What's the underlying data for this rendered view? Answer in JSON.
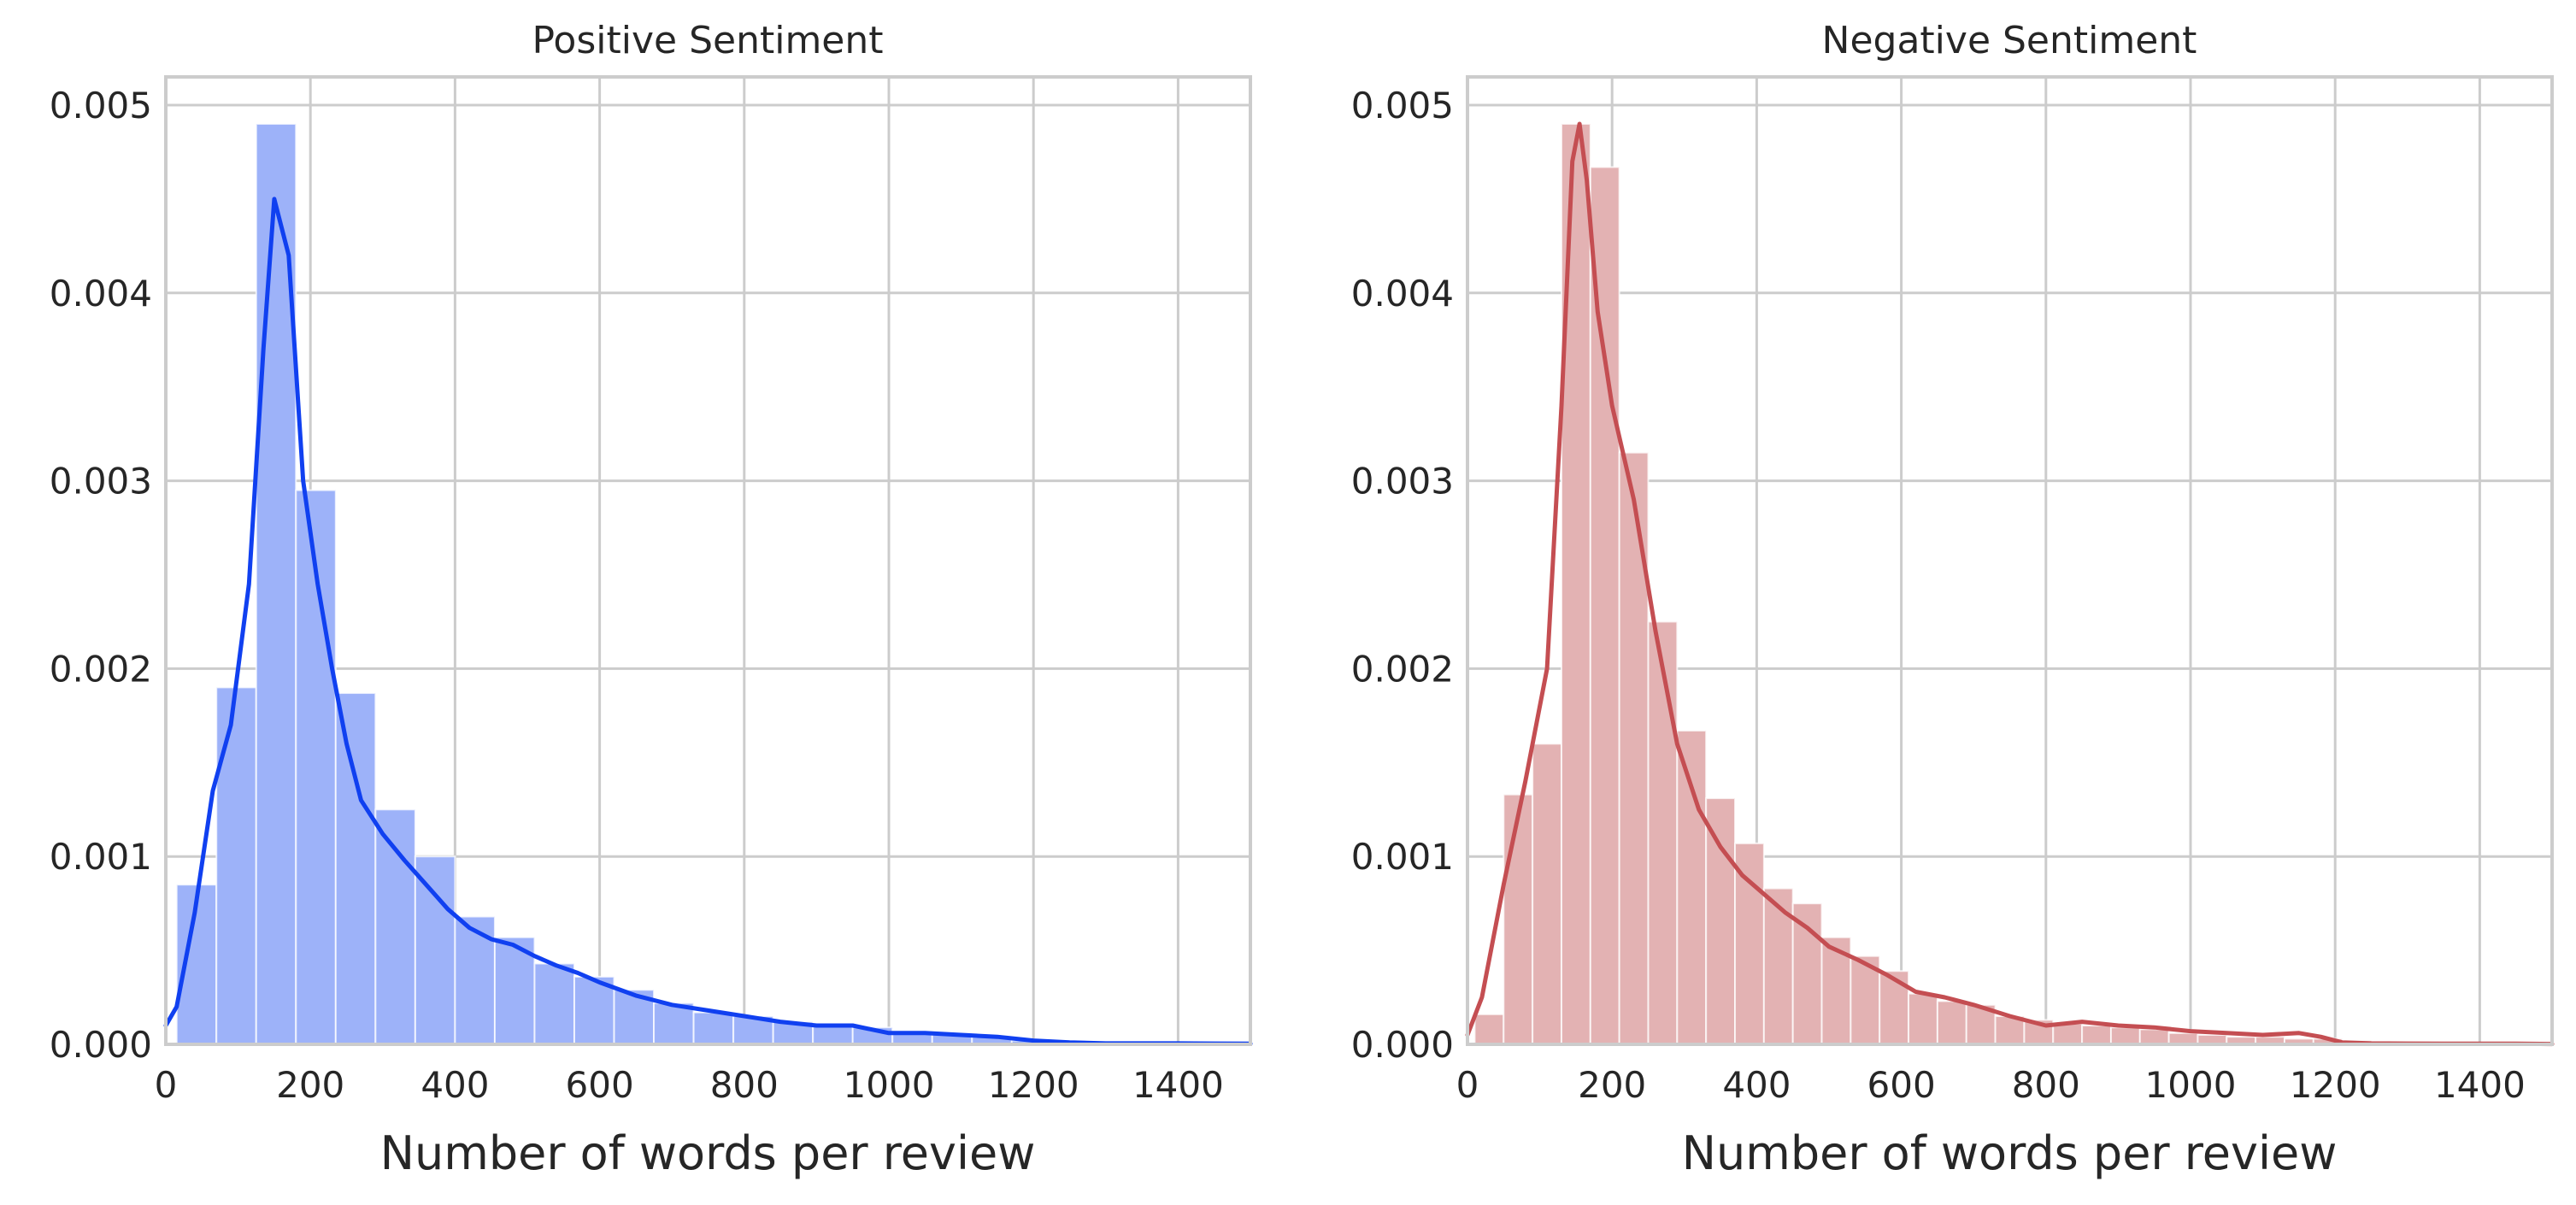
{
  "chart_data": [
    {
      "type": "histogram",
      "title": "Positive Sentiment",
      "xlabel": "Number of words per review",
      "ylabel": "",
      "xlim": [
        0,
        1500
      ],
      "ylim": [
        0,
        0.00515
      ],
      "xticks": [
        "0",
        "200",
        "400",
        "600",
        "800",
        "1000",
        "1200",
        "1400"
      ],
      "yticks": [
        "0.000",
        "0.001",
        "0.002",
        "0.003",
        "0.004",
        "0.005"
      ],
      "grid": true,
      "bar_color": "#9db2f9",
      "line_color": "#1040f0",
      "bins": [
        {
          "x0": 15,
          "x1": 70,
          "value": 0.00085
        },
        {
          "x0": 70,
          "x1": 125,
          "value": 0.0019
        },
        {
          "x0": 125,
          "x1": 180,
          "value": 0.0049
        },
        {
          "x0": 180,
          "x1": 235,
          "value": 0.00295
        },
        {
          "x0": 235,
          "x1": 290,
          "value": 0.00187
        },
        {
          "x0": 290,
          "x1": 345,
          "value": 0.00125
        },
        {
          "x0": 345,
          "x1": 400,
          "value": 0.001
        },
        {
          "x0": 400,
          "x1": 455,
          "value": 0.00068
        },
        {
          "x0": 455,
          "x1": 510,
          "value": 0.00057
        },
        {
          "x0": 510,
          "x1": 565,
          "value": 0.00043
        },
        {
          "x0": 565,
          "x1": 620,
          "value": 0.00036
        },
        {
          "x0": 620,
          "x1": 675,
          "value": 0.00029
        },
        {
          "x0": 675,
          "x1": 730,
          "value": 0.00022
        },
        {
          "x0": 730,
          "x1": 785,
          "value": 0.00017
        },
        {
          "x0": 785,
          "x1": 840,
          "value": 0.00015
        },
        {
          "x0": 840,
          "x1": 895,
          "value": 0.00012
        },
        {
          "x0": 895,
          "x1": 950,
          "value": 0.0001
        },
        {
          "x0": 950,
          "x1": 1005,
          "value": 9e-05
        },
        {
          "x0": 1005,
          "x1": 1060,
          "value": 7e-05
        },
        {
          "x0": 1060,
          "x1": 1115,
          "value": 6e-05
        },
        {
          "x0": 1115,
          "x1": 1170,
          "value": 4e-05
        },
        {
          "x0": 1170,
          "x1": 1225,
          "value": 2e-05
        }
      ],
      "kde": {
        "x": [
          0,
          15,
          40,
          65,
          90,
          115,
          135,
          150,
          170,
          190,
          210,
          230,
          250,
          270,
          300,
          330,
          360,
          390,
          420,
          450,
          480,
          510,
          540,
          570,
          600,
          650,
          700,
          750,
          800,
          850,
          900,
          950,
          1000,
          1050,
          1100,
          1150,
          1200,
          1250,
          1300,
          1350,
          1400,
          1450,
          1500
        ],
        "y": [
          0.0001,
          0.0002,
          0.0007,
          0.00135,
          0.0017,
          0.00245,
          0.0037,
          0.0045,
          0.0042,
          0.003,
          0.00245,
          0.002,
          0.0016,
          0.0013,
          0.00112,
          0.00098,
          0.00085,
          0.00072,
          0.00062,
          0.00056,
          0.00053,
          0.00047,
          0.00042,
          0.00038,
          0.00033,
          0.00026,
          0.00021,
          0.00018,
          0.00015,
          0.00012,
          0.0001,
          0.0001,
          6e-05,
          6e-05,
          5e-05,
          4e-05,
          2e-05,
          1e-05,
          5e-06,
          5e-06,
          5e-06,
          4e-06,
          3e-06
        ]
      }
    },
    {
      "type": "histogram",
      "title": "Negative Sentiment",
      "xlabel": "Number of words per review",
      "ylabel": "",
      "xlim": [
        0,
        1500
      ],
      "ylim": [
        0,
        0.00515
      ],
      "xticks": [
        "0",
        "200",
        "400",
        "600",
        "800",
        "1000",
        "1200",
        "1400"
      ],
      "yticks": [
        "0.000",
        "0.001",
        "0.002",
        "0.003",
        "0.004",
        "0.005"
      ],
      "grid": true,
      "bar_color": "#e3b2b3",
      "line_color": "#c44e52",
      "bins": [
        {
          "x0": 10,
          "x1": 50,
          "value": 0.00016
        },
        {
          "x0": 50,
          "x1": 90,
          "value": 0.00133
        },
        {
          "x0": 90,
          "x1": 130,
          "value": 0.0016
        },
        {
          "x0": 130,
          "x1": 170,
          "value": 0.0049
        },
        {
          "x0": 170,
          "x1": 210,
          "value": 0.00467
        },
        {
          "x0": 210,
          "x1": 250,
          "value": 0.00315
        },
        {
          "x0": 250,
          "x1": 290,
          "value": 0.00225
        },
        {
          "x0": 290,
          "x1": 330,
          "value": 0.00167
        },
        {
          "x0": 330,
          "x1": 370,
          "value": 0.00131
        },
        {
          "x0": 370,
          "x1": 410,
          "value": 0.00107
        },
        {
          "x0": 410,
          "x1": 450,
          "value": 0.00083
        },
        {
          "x0": 450,
          "x1": 490,
          "value": 0.00075
        },
        {
          "x0": 490,
          "x1": 530,
          "value": 0.00057
        },
        {
          "x0": 530,
          "x1": 570,
          "value": 0.00047
        },
        {
          "x0": 570,
          "x1": 610,
          "value": 0.00039
        },
        {
          "x0": 610,
          "x1": 650,
          "value": 0.00027
        },
        {
          "x0": 650,
          "x1": 690,
          "value": 0.00023
        },
        {
          "x0": 690,
          "x1": 730,
          "value": 0.00021
        },
        {
          "x0": 730,
          "x1": 770,
          "value": 0.00015
        },
        {
          "x0": 770,
          "x1": 810,
          "value": 0.00013
        },
        {
          "x0": 810,
          "x1": 850,
          "value": 0.00011
        },
        {
          "x0": 850,
          "x1": 890,
          "value": 0.0001
        },
        {
          "x0": 890,
          "x1": 930,
          "value": 9e-05
        },
        {
          "x0": 930,
          "x1": 970,
          "value": 8e-05
        },
        {
          "x0": 970,
          "x1": 1010,
          "value": 6e-05
        },
        {
          "x0": 1010,
          "x1": 1050,
          "value": 5e-05
        },
        {
          "x0": 1050,
          "x1": 1090,
          "value": 4e-05
        },
        {
          "x0": 1090,
          "x1": 1130,
          "value": 4e-05
        },
        {
          "x0": 1130,
          "x1": 1170,
          "value": 3e-05
        },
        {
          "x0": 1170,
          "x1": 1210,
          "value": 3e-05
        },
        {
          "x0": 1210,
          "x1": 1250,
          "value": 2e-05
        },
        {
          "x0": 1250,
          "x1": 1290,
          "value": 1e-05
        }
      ],
      "kde": {
        "x": [
          0,
          20,
          50,
          80,
          110,
          130,
          145,
          155,
          165,
          180,
          200,
          230,
          260,
          290,
          320,
          350,
          380,
          410,
          440,
          470,
          500,
          540,
          580,
          620,
          660,
          700,
          750,
          800,
          850,
          900,
          950,
          1000,
          1050,
          1100,
          1150,
          1180,
          1210,
          1250,
          1300,
          1350,
          1400,
          1450,
          1500
        ],
        "y": [
          5e-05,
          0.00025,
          0.00085,
          0.0014,
          0.002,
          0.0034,
          0.0047,
          0.0049,
          0.0046,
          0.0039,
          0.0034,
          0.0029,
          0.0022,
          0.0016,
          0.00125,
          0.00105,
          0.0009,
          0.0008,
          0.0007,
          0.00062,
          0.00052,
          0.00045,
          0.00037,
          0.00028,
          0.00025,
          0.00021,
          0.00015,
          0.0001,
          0.00012,
          0.0001,
          9e-05,
          7e-05,
          6e-05,
          5e-05,
          6e-05,
          4e-05,
          1e-05,
          5e-06,
          4e-06,
          3e-06,
          3e-06,
          3e-06,
          2e-06
        ]
      }
    }
  ]
}
